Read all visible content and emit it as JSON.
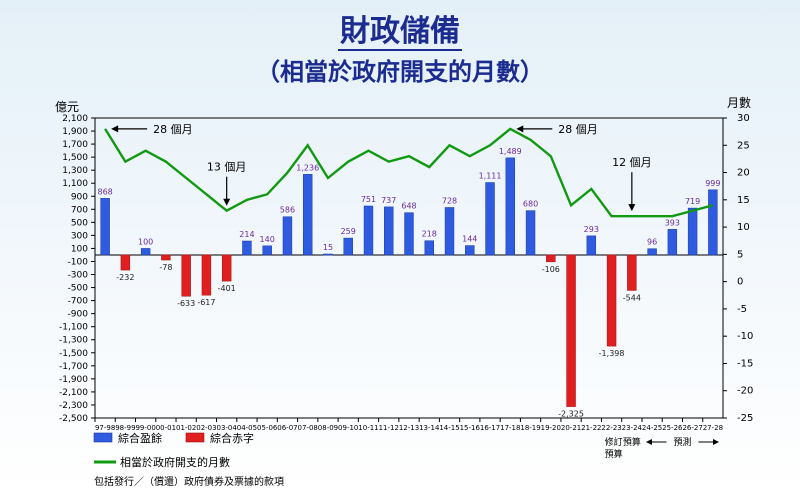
{
  "page": {
    "title": "財政儲備",
    "subtitle": "（相當於政府開支的月數）",
    "footnote": "包括發行／（償還）政府債券及票據的款項"
  },
  "chart_data": {
    "type": "bar",
    "categories": [
      "97-98",
      "98-99",
      "99-00",
      "00-01",
      "01-02",
      "02-03",
      "03-04",
      "04-05",
      "05-06",
      "06-07",
      "07-08",
      "08-09",
      "09-10",
      "10-11",
      "11-12",
      "12-13",
      "13-14",
      "14-15",
      "15-16",
      "16-17",
      "17-18",
      "18-19",
      "19-20",
      "20-21",
      "21-22",
      "22-23",
      "23-24",
      "24-25",
      "25-26",
      "26-27",
      "27-28"
    ],
    "series": [
      {
        "name": "綜合盈餘",
        "axis": "left",
        "color": "#2f5be0",
        "values": [
          868,
          null,
          100,
          null,
          null,
          null,
          null,
          214,
          140,
          586,
          1236,
          15,
          259,
          751,
          737,
          648,
          218,
          728,
          144,
          1111,
          1489,
          680,
          null,
          null,
          293,
          null,
          null,
          96,
          393,
          719,
          999
        ]
      },
      {
        "name": "綜合赤字",
        "axis": "left",
        "color": "#e02020",
        "values": [
          null,
          -232,
          null,
          -78,
          -633,
          -617,
          -401,
          null,
          null,
          null,
          null,
          null,
          null,
          null,
          null,
          null,
          null,
          null,
          null,
          null,
          null,
          null,
          -106,
          -2325,
          null,
          -1398,
          -544,
          null,
          null,
          null,
          null
        ]
      },
      {
        "name": "相當於政府開支的月數",
        "axis": "right",
        "color": "#119911",
        "type": "line",
        "values": [
          28,
          22,
          24,
          22,
          19,
          16,
          13,
          15,
          16,
          20,
          25,
          19,
          22,
          24,
          22,
          23,
          21,
          25,
          23,
          25,
          28,
          26,
          23,
          14,
          17,
          12,
          12,
          12,
          12,
          13,
          14
        ]
      }
    ],
    "data_labels": [
      "868",
      "-232",
      "100",
      "-78",
      "-633",
      "-617",
      "-401",
      "214",
      "140",
      "586",
      "1,236",
      "15",
      "259",
      "751",
      "737",
      "648",
      "218",
      "728",
      "144",
      "1,111",
      "1,489",
      "680",
      "-106",
      "-2,325",
      "293",
      "-1,398",
      "-544",
      "96",
      "393",
      "719",
      "999"
    ],
    "ylabel_left": "億元",
    "ylabel_right": "月數",
    "ylim_left": [
      -2500,
      2100
    ],
    "ylim_right": [
      -25,
      30
    ],
    "yticks_left": [
      "2,100",
      "1,900",
      "1,700",
      "1,500",
      "1,300",
      "1,100",
      "900",
      "700",
      "500",
      "300",
      "100",
      "-100",
      "-300",
      "-500",
      "-700",
      "-900",
      "-1,100",
      "-1,300",
      "-1,500",
      "-1,700",
      "-1,900",
      "-2,100",
      "-2,300",
      "-2,500"
    ],
    "yticks_right": [
      "30",
      "25",
      "20",
      "15",
      "10",
      "5",
      "0",
      "-5",
      "-10",
      "-15",
      "-20",
      "-25"
    ],
    "grid": false,
    "annotations": [
      {
        "text": "28 個月",
        "category": "97-98"
      },
      {
        "text": "13 個月",
        "category": "03-04"
      },
      {
        "text": "28 個月",
        "category": "17-18"
      },
      {
        "text": "12 個月",
        "category": "23-24"
      }
    ],
    "period_labels": {
      "revised": "修訂\n預算",
      "budget": "預算",
      "forecast": "預測"
    },
    "legend": {
      "placement": "bottom-left",
      "surplus": "綜合盈餘",
      "deficit": "綜合赤字",
      "months": "相當於政府開支的月數"
    }
  }
}
